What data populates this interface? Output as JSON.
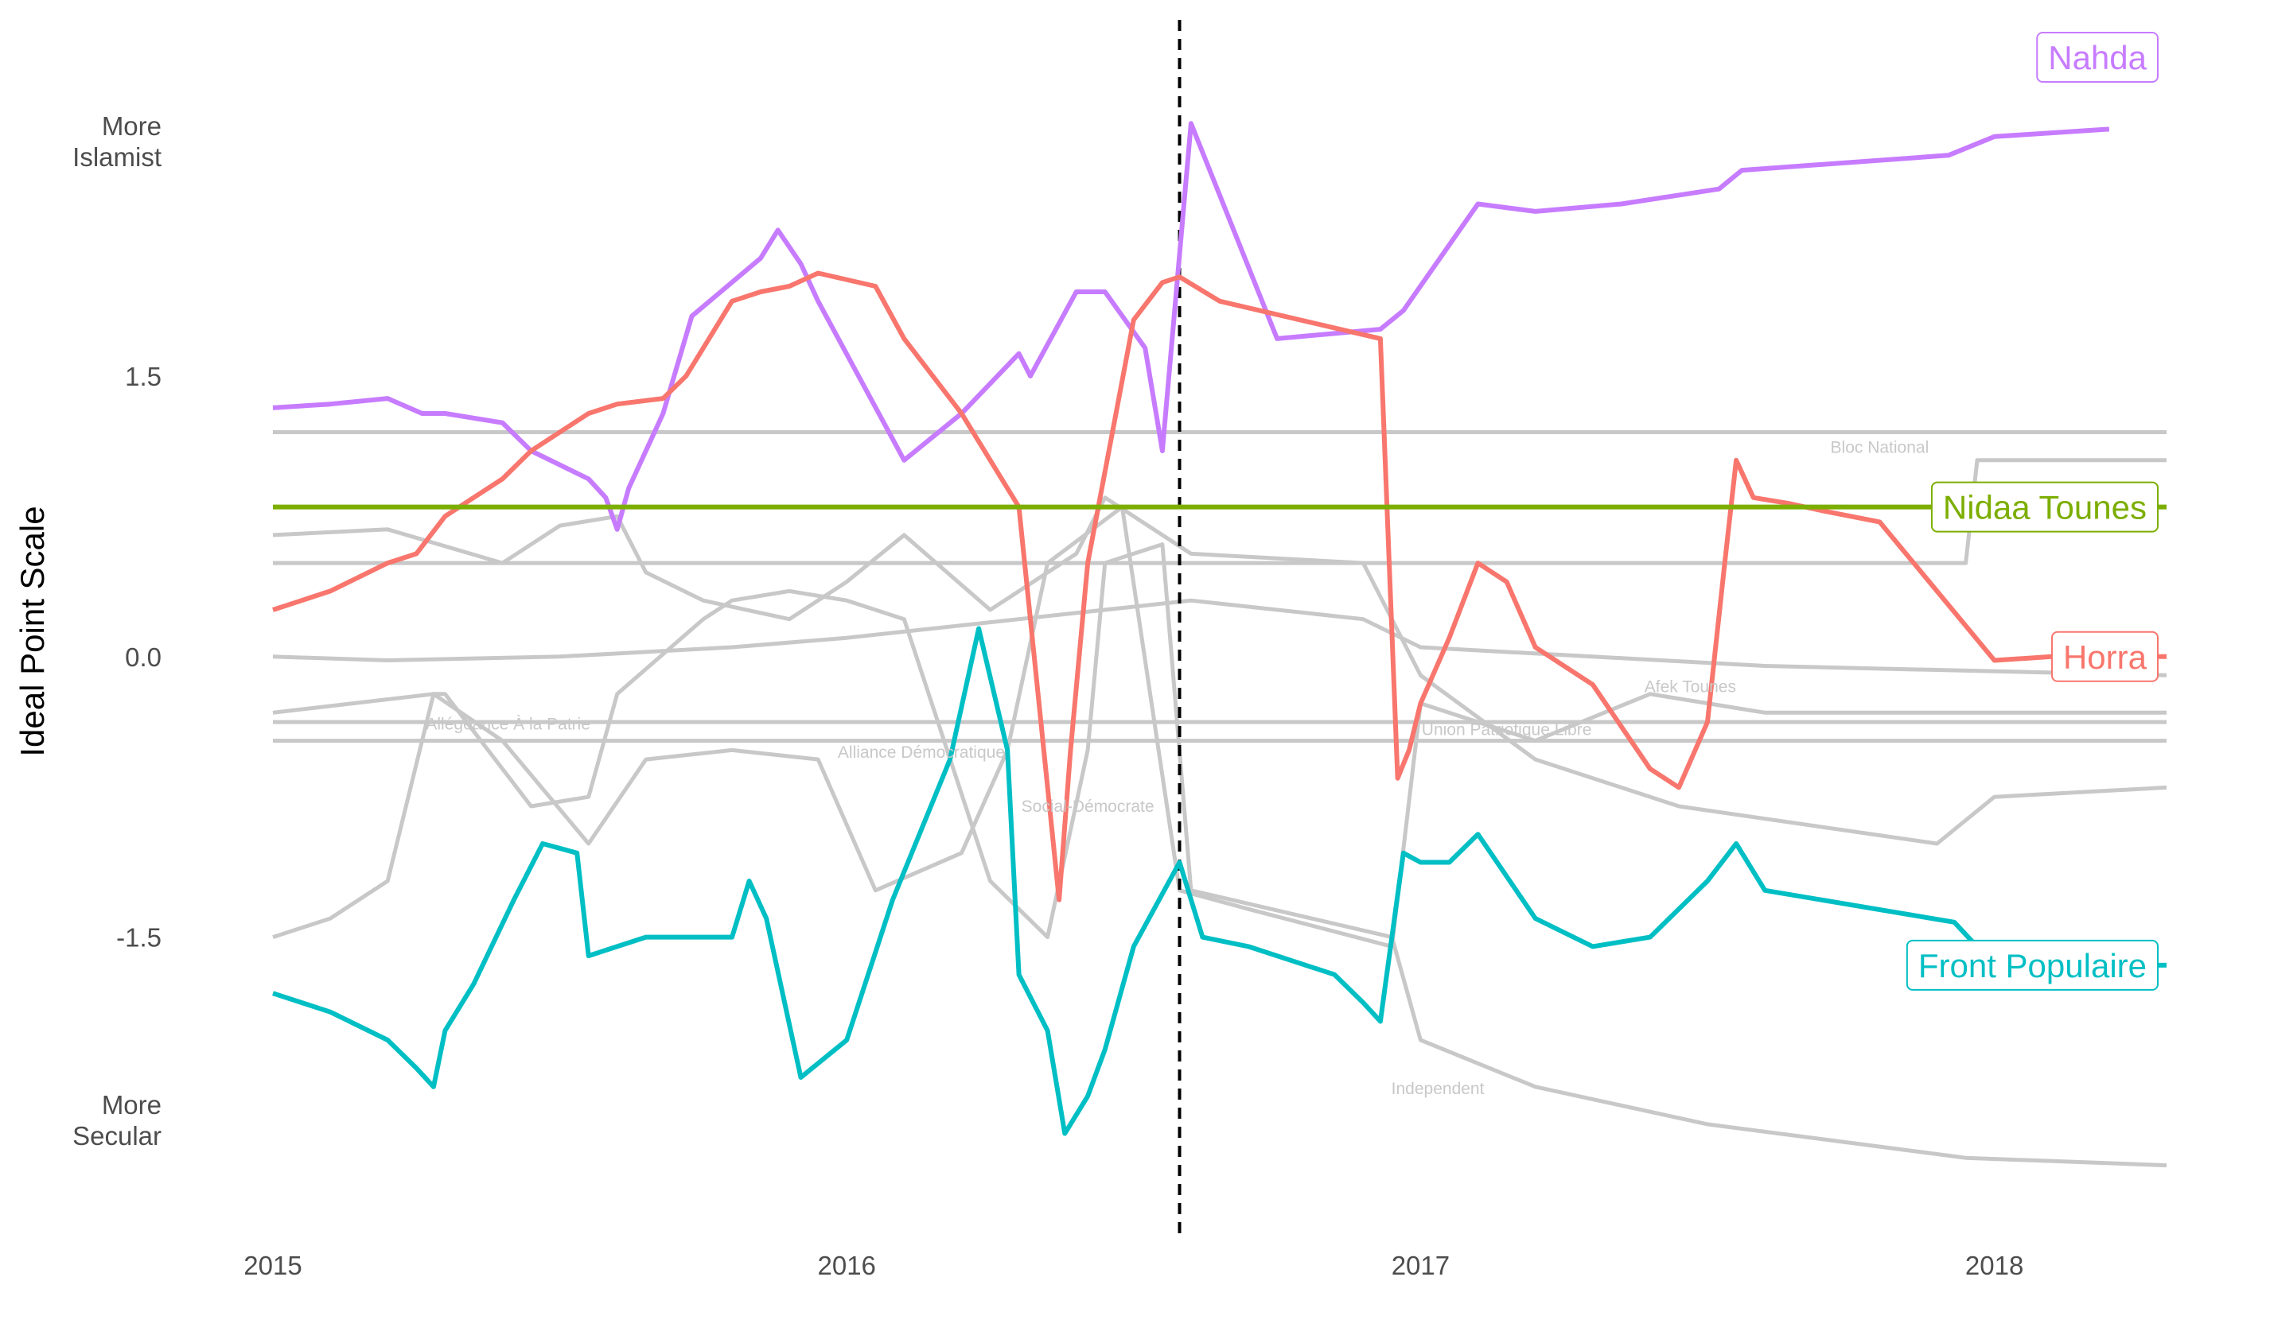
{
  "chart_data": {
    "type": "line",
    "title": "",
    "xlabel": "",
    "ylabel": "Ideal Point Scale",
    "xlim": [
      2015.0,
      2018.3
    ],
    "ylim": [
      -3.1,
      3.2
    ],
    "x_ticks": [
      2015,
      2016,
      2017,
      2018
    ],
    "x_tick_labels": [
      "2015",
      "2016",
      "2017",
      "2018"
    ],
    "y_ticks": [
      -1.5,
      0.0,
      1.5
    ],
    "y_tick_labels": [
      "-1.5",
      "0.0",
      "1.5"
    ],
    "y_top_caption": [
      "More",
      "Islamist"
    ],
    "y_bottom_caption": [
      "More",
      "Secular"
    ],
    "event_line_x": 2016.58,
    "grid": false,
    "legend": "none (direct labels at line ends)",
    "colors": {
      "Nahda": "#c77cff",
      "Horra": "#f8766d",
      "Nidaa Tounes": "#7cae00",
      "Front Populaire": "#00bfc4",
      "other": "#c8c8c8",
      "event_line": "#000000"
    },
    "highlighted_series": [
      {
        "name": "Nahda",
        "label_at": "end-top",
        "x": [
          2015.0,
          2015.1,
          2015.2,
          2015.26,
          2015.3,
          2015.4,
          2015.45,
          2015.55,
          2015.58,
          2015.6,
          2015.62,
          2015.68,
          2015.73,
          2015.85,
          2015.88,
          2015.92,
          2015.95,
          2016.1,
          2016.2,
          2016.3,
          2016.32,
          2016.4,
          2016.45,
          2016.52,
          2016.55,
          2016.6,
          2016.75,
          2016.93,
          2016.97,
          2017.1,
          2017.2,
          2017.35,
          2017.52,
          2017.56,
          2017.92,
          2018.0,
          2018.2
        ],
        "y": [
          1.33,
          1.35,
          1.38,
          1.3,
          1.3,
          1.25,
          1.1,
          0.95,
          0.85,
          0.68,
          0.9,
          1.3,
          1.82,
          2.13,
          2.28,
          2.1,
          1.9,
          1.05,
          1.3,
          1.62,
          1.5,
          1.95,
          1.95,
          1.65,
          1.1,
          2.85,
          1.7,
          1.75,
          1.85,
          2.42,
          2.38,
          2.42,
          2.5,
          2.6,
          2.68,
          2.78,
          2.82
        ]
      },
      {
        "name": "Horra",
        "label_at": "end",
        "x": [
          2015.0,
          2015.1,
          2015.2,
          2015.25,
          2015.3,
          2015.35,
          2015.4,
          2015.45,
          2015.5,
          2015.55,
          2015.6,
          2015.68,
          2015.72,
          2015.8,
          2015.85,
          2015.9,
          2015.95,
          2016.05,
          2016.1,
          2016.2,
          2016.3,
          2016.37,
          2016.39,
          2016.42,
          2016.5,
          2016.55,
          2016.58,
          2016.65,
          2016.93,
          2016.96,
          2016.98,
          2017.0,
          2017.05,
          2017.1,
          2017.15,
          2017.2,
          2017.25,
          2017.3,
          2017.4,
          2017.45,
          2017.5,
          2017.53,
          2017.55,
          2017.58,
          2017.64,
          2017.7,
          2017.8,
          2018.0,
          2018.1,
          2018.3
        ],
        "y": [
          0.25,
          0.35,
          0.5,
          0.55,
          0.75,
          0.85,
          0.95,
          1.1,
          1.2,
          1.3,
          1.35,
          1.38,
          1.5,
          1.9,
          1.95,
          1.98,
          2.05,
          1.98,
          1.7,
          1.3,
          0.8,
          -1.3,
          -0.5,
          0.5,
          1.8,
          2.0,
          2.03,
          1.9,
          1.7,
          -0.65,
          -0.5,
          -0.25,
          0.1,
          0.5,
          0.4,
          0.05,
          -0.05,
          -0.15,
          -0.6,
          -0.7,
          -0.35,
          0.5,
          1.05,
          0.85,
          0.82,
          0.78,
          0.72,
          -0.02,
          0.0,
          0.0
        ]
      },
      {
        "name": "Nidaa Tounes",
        "label_at": "end",
        "x": [
          2015.0,
          2018.3
        ],
        "y": [
          0.8,
          0.8
        ]
      },
      {
        "name": "Front Populaire",
        "label_at": "end",
        "x": [
          2015.0,
          2015.1,
          2015.2,
          2015.25,
          2015.28,
          2015.3,
          2015.35,
          2015.42,
          2015.47,
          2015.53,
          2015.55,
          2015.65,
          2015.72,
          2015.8,
          2015.83,
          2015.86,
          2015.92,
          2016.0,
          2016.08,
          2016.18,
          2016.23,
          2016.28,
          2016.3,
          2016.35,
          2016.38,
          2016.42,
          2016.45,
          2016.5,
          2016.58,
          2016.62,
          2016.7,
          2016.85,
          2016.9,
          2016.93,
          2016.97,
          2017.0,
          2017.05,
          2017.1,
          2017.2,
          2017.3,
          2017.4,
          2017.5,
          2017.55,
          2017.6,
          2017.93,
          2018.0,
          2018.3
        ],
        "y": [
          -1.8,
          -1.9,
          -2.05,
          -2.2,
          -2.3,
          -2.0,
          -1.75,
          -1.3,
          -1.0,
          -1.05,
          -1.6,
          -1.5,
          -1.5,
          -1.5,
          -1.2,
          -1.4,
          -2.25,
          -2.05,
          -1.3,
          -0.55,
          0.15,
          -0.5,
          -1.7,
          -2.0,
          -2.55,
          -2.35,
          -2.1,
          -1.55,
          -1.1,
          -1.5,
          -1.55,
          -1.7,
          -1.85,
          -1.95,
          -1.05,
          -1.1,
          -1.1,
          -0.95,
          -1.4,
          -1.55,
          -1.5,
          -1.2,
          -1.0,
          -1.25,
          -1.42,
          -1.65,
          -1.65
        ]
      }
    ],
    "background_series": [
      {
        "x": [
          2015.0,
          2018.3
        ],
        "y": [
          1.2,
          1.2
        ]
      },
      {
        "x": [
          2015.0,
          2017.95,
          2017.97,
          2018.3
        ],
        "y": [
          0.5,
          0.5,
          1.05,
          1.05
        ]
      },
      {
        "x": [
          2015.0,
          2015.2,
          2015.5,
          2015.8,
          2016.0,
          2016.3,
          2016.6,
          2016.9,
          2017.0,
          2017.3,
          2017.6,
          2018.3
        ],
        "y": [
          0.0,
          -0.02,
          0.0,
          0.05,
          0.1,
          0.2,
          0.3,
          0.2,
          0.05,
          0.0,
          -0.05,
          -0.1
        ]
      },
      {
        "x": [
          2015.0,
          2018.3
        ],
        "y": [
          -0.35,
          -0.35
        ]
      },
      {
        "x": [
          2015.0,
          2018.3
        ],
        "y": [
          -0.45,
          -0.45
        ]
      },
      {
        "x": [
          2015.0,
          2015.2,
          2015.4,
          2015.5,
          2015.6,
          2015.65,
          2015.75,
          2015.9,
          2016.0,
          2016.1,
          2016.25,
          2016.4,
          2016.45,
          2016.6,
          2016.9,
          2017.0,
          2017.2,
          2017.45,
          2017.9,
          2018.0,
          2018.3
        ],
        "y": [
          0.65,
          0.68,
          0.5,
          0.7,
          0.75,
          0.45,
          0.3,
          0.2,
          0.4,
          0.65,
          0.25,
          0.55,
          0.85,
          0.55,
          0.5,
          -0.1,
          -0.55,
          -0.8,
          -1.0,
          -0.75,
          -0.7
        ]
      },
      {
        "x": [
          2015.0,
          2015.1,
          2015.2,
          2015.28,
          2015.3,
          2015.45,
          2015.55,
          2015.6,
          2015.75,
          2015.8,
          2015.9,
          2016.0,
          2016.1,
          2016.25,
          2016.35,
          2016.42,
          2016.45,
          2016.55,
          2016.6,
          2016.95,
          2017.0,
          2017.2,
          2017.5,
          2017.95,
          2018.3
        ],
        "y": [
          -1.5,
          -1.4,
          -1.2,
          -0.2,
          -0.2,
          -0.8,
          -0.75,
          -0.2,
          0.2,
          0.3,
          0.35,
          0.3,
          0.2,
          -1.2,
          -1.5,
          -0.5,
          0.5,
          0.6,
          -1.25,
          -1.5,
          -2.05,
          -2.3,
          -2.5,
          -2.68,
          -2.72
        ]
      },
      {
        "x": [
          2015.0,
          2015.28,
          2015.4,
          2015.55,
          2015.65,
          2015.8,
          2015.95,
          2016.05,
          2016.2,
          2016.28,
          2016.35,
          2016.48,
          2016.58,
          2016.7,
          2016.95,
          2017.0,
          2017.2,
          2017.4,
          2017.6,
          2017.95,
          2018.3
        ],
        "y": [
          -0.3,
          -0.2,
          -0.45,
          -1.0,
          -0.55,
          -0.5,
          -0.55,
          -1.25,
          -1.05,
          -0.5,
          0.5,
          0.8,
          -1.25,
          -1.35,
          -1.55,
          -0.25,
          -0.45,
          -0.2,
          -0.3,
          -0.3,
          -0.3
        ]
      }
    ],
    "series_labels": [
      {
        "text": "Bloc National",
        "x": 2017.8,
        "y": 1.09
      },
      {
        "text": "Afek Tounes",
        "x": 2017.47,
        "y": -0.19
      },
      {
        "text": "Allégeance À la Patrie",
        "x": 2015.41,
        "y": -0.39
      },
      {
        "text": "Union Patriotique Libre",
        "x": 2017.15,
        "y": -0.42
      },
      {
        "text": "Alliance Démocratique",
        "x": 2016.13,
        "y": -0.54
      },
      {
        "text": "Social-Démocrate",
        "x": 2016.42,
        "y": -0.83
      },
      {
        "text": "Independent",
        "x": 2017.03,
        "y": -2.34
      }
    ]
  }
}
